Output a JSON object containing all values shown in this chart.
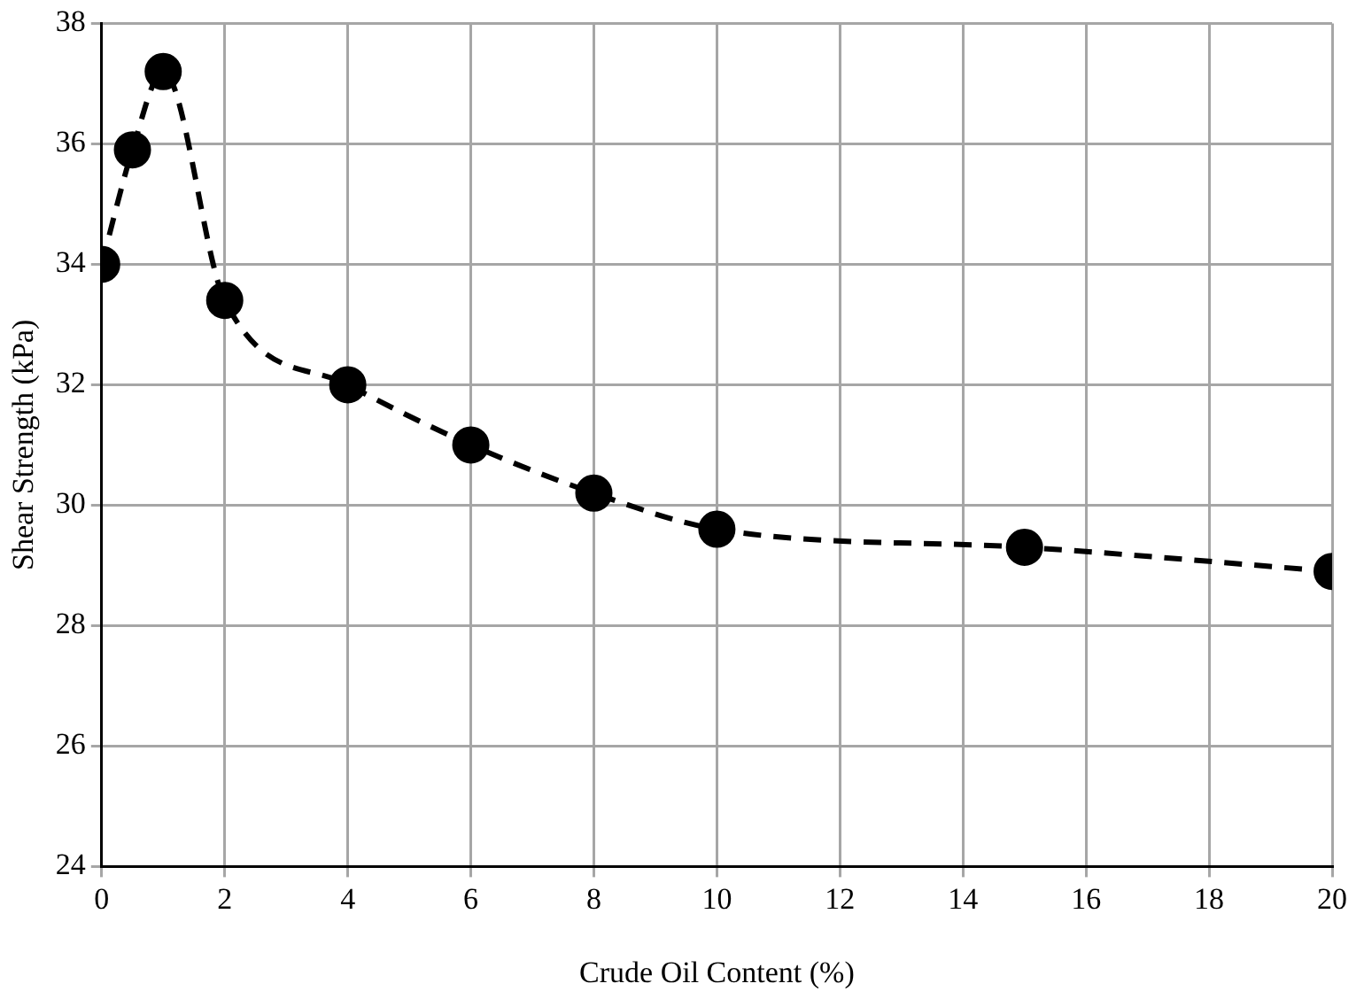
{
  "chart_data": {
    "type": "line",
    "xlabel": "Crude Oil Content (%)",
    "ylabel": "Shear Strength (kPa)",
    "x": [
      0,
      0.5,
      1,
      2,
      4,
      6,
      8,
      10,
      15,
      20
    ],
    "series": [
      {
        "color": "#000000",
        "values": [
          34.0,
          35.9,
          37.2,
          33.4,
          32.0,
          31.0,
          30.2,
          29.6,
          29.3,
          28.9
        ]
      }
    ],
    "xlim": [
      0,
      20
    ],
    "xticks": [
      0,
      2,
      4,
      6,
      8,
      10,
      12,
      14,
      16,
      18,
      20
    ],
    "ylim": [
      24,
      38
    ],
    "yticks": [
      24,
      26,
      28,
      30,
      32,
      34,
      36,
      38
    ],
    "grid": true,
    "legend": false,
    "marker": "circle",
    "line_style": "dashed"
  }
}
